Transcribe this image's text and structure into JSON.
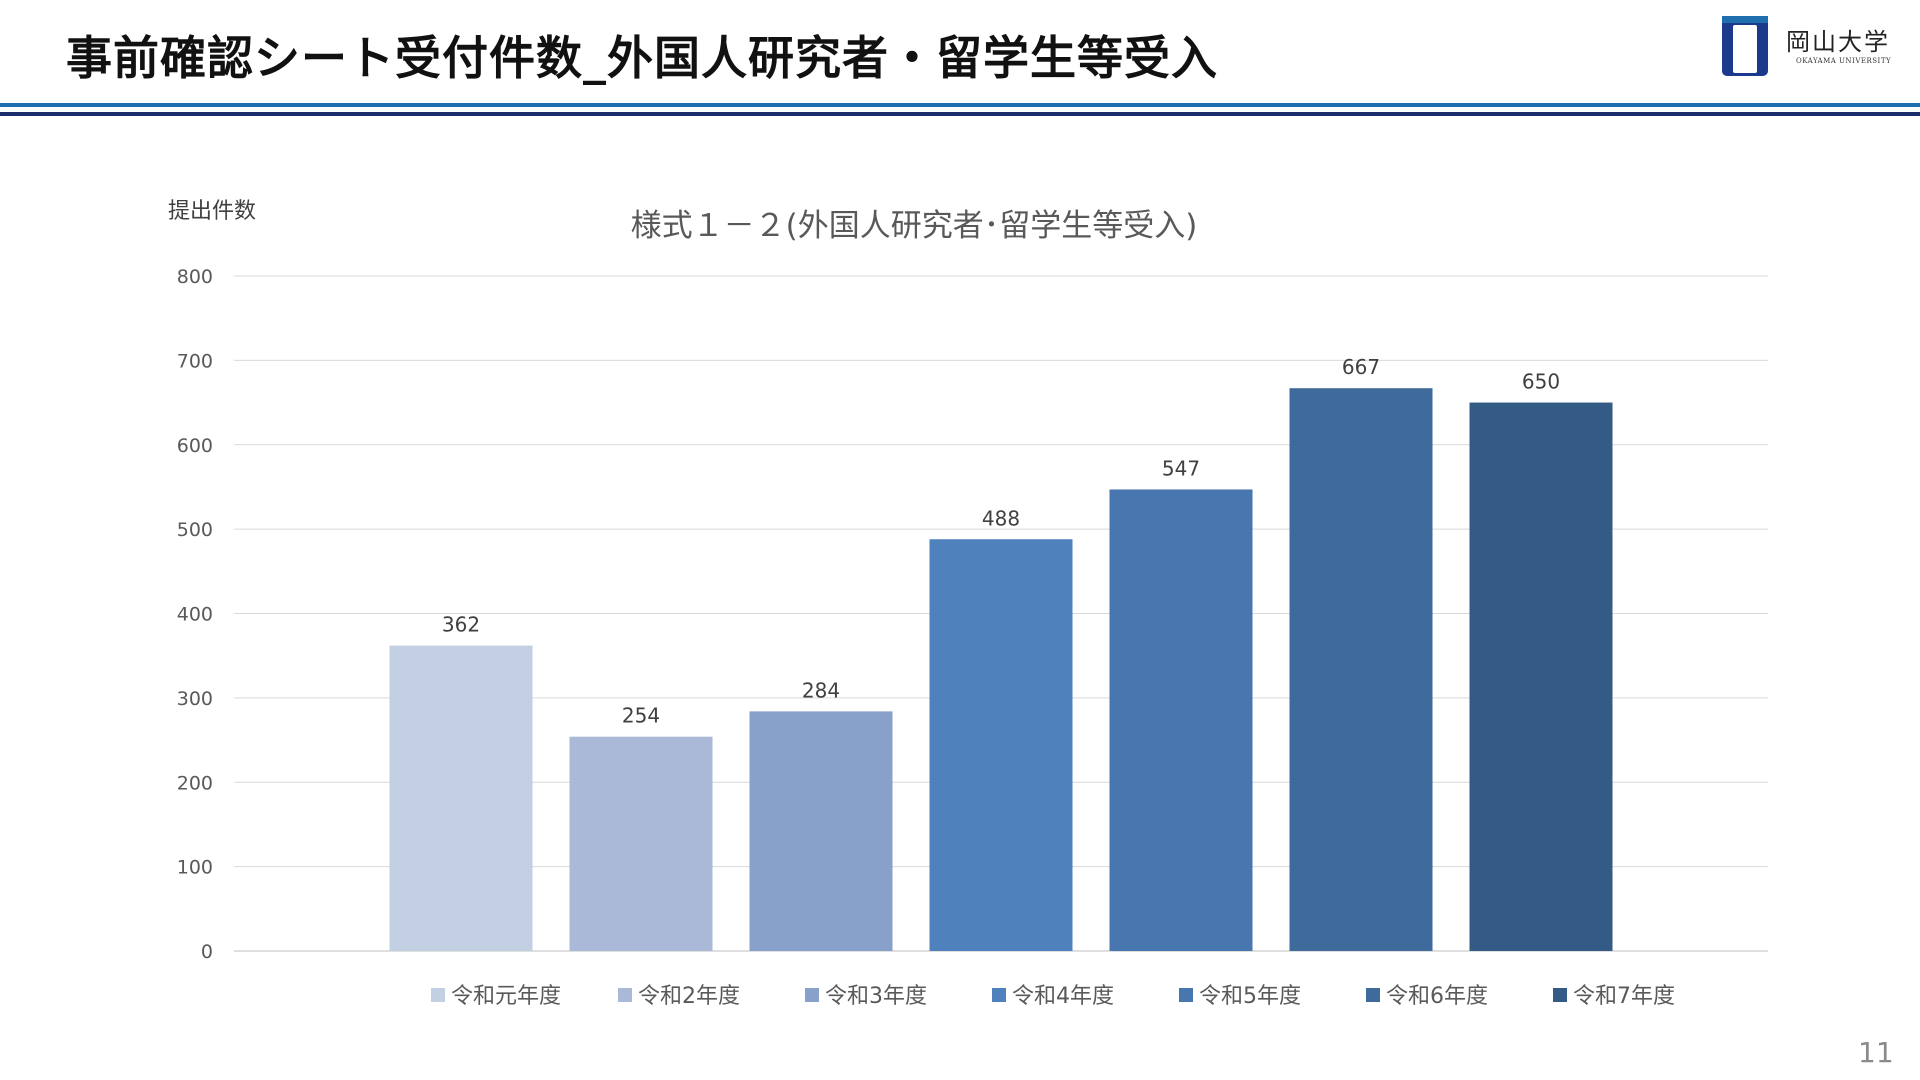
{
  "slide": {
    "title": "事前確認シート受付件数_外国人研究者・留学生等受入",
    "page_number": "11",
    "logo": {
      "name": "岡山大学",
      "subtitle": "OKAYAMA UNIVERSITY"
    }
  },
  "colors": {
    "rule_top": "#1f6fae",
    "rule_bottom": "#1b2d6b",
    "logo_blue": "#1b3a8c",
    "gridline": "#d9d9d9",
    "text": "#404040"
  },
  "chart_data": {
    "type": "bar",
    "title": "様式１－２(外国人研究者･留学生等受入)",
    "ylabel": "提出件数",
    "xlabel": "",
    "ylim": [
      0,
      800
    ],
    "yticks": [
      0,
      100,
      200,
      300,
      400,
      500,
      600,
      700,
      800
    ],
    "grid": true,
    "legend_position": "bottom",
    "categories": [
      "令和元年度",
      "令和2年度",
      "令和3年度",
      "令和4年度",
      "令和5年度",
      "令和6年度",
      "令和7年度"
    ],
    "series": [
      {
        "name": "令和元年度",
        "values": [
          362,
          null,
          null,
          null,
          null,
          null,
          null
        ],
        "color": "#c3cfe2"
      },
      {
        "name": "令和2年度",
        "values": [
          null,
          254,
          null,
          null,
          null,
          null,
          null
        ],
        "color": "#aab9d7"
      },
      {
        "name": "令和3年度",
        "values": [
          null,
          null,
          284,
          null,
          null,
          null,
          null
        ],
        "color": "#87a1cb"
      },
      {
        "name": "令和4年度",
        "values": [
          null,
          null,
          null,
          488,
          null,
          null,
          null
        ],
        "color": "#4f81bd"
      },
      {
        "name": "令和5年度",
        "values": [
          null,
          null,
          null,
          null,
          547,
          null,
          null
        ],
        "color": "#4876ae"
      },
      {
        "name": "令和6年度",
        "values": [
          null,
          null,
          null,
          null,
          null,
          667,
          null
        ],
        "color": "#3e6a9c"
      },
      {
        "name": "令和7年度",
        "values": [
          null,
          null,
          null,
          null,
          null,
          null,
          650
        ],
        "color": "#345a86"
      }
    ],
    "data_labels": [
      "362",
      "254",
      "284",
      "488",
      "547",
      "667",
      "650"
    ]
  }
}
